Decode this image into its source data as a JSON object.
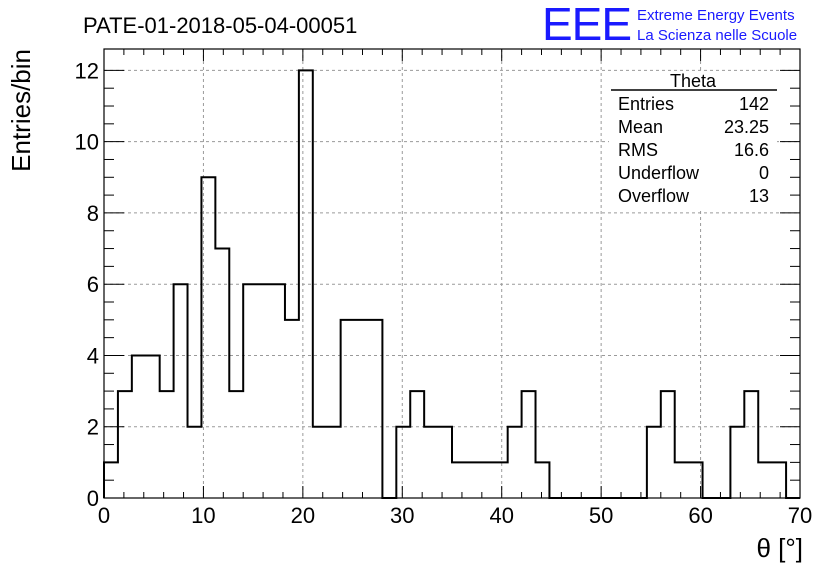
{
  "title": "PATE-01-2018-05-04-00051",
  "logo": {
    "mark": "EEE",
    "line1": "Extreme Energy Events",
    "line2": "La Scienza nelle Scuole",
    "color": "#1a1aff"
  },
  "stats": {
    "name": "Theta",
    "rows": [
      {
        "label": "Entries",
        "value": "142"
      },
      {
        "label": "Mean",
        "value": "23.25"
      },
      {
        "label": "RMS",
        "value": "16.6"
      },
      {
        "label": "Underflow",
        "value": "0"
      },
      {
        "label": "Overflow",
        "value": "13"
      }
    ]
  },
  "chart_data": {
    "type": "bar",
    "histogram": true,
    "xlabel": "θ [°]",
    "ylabel": "Entries/bin",
    "xlim": [
      0,
      70
    ],
    "ylim": [
      0,
      12.6
    ],
    "xticks": [
      0,
      10,
      20,
      30,
      40,
      50,
      60,
      70
    ],
    "yticks": [
      0,
      2,
      4,
      6,
      8,
      10,
      12
    ],
    "grid": true,
    "bin_edges": [
      0,
      1.4,
      2.8,
      4.2,
      5.6,
      7,
      8.4,
      9.8,
      11.2,
      12.6,
      14,
      15.4,
      16.8,
      18.2,
      19.6,
      21,
      22.4,
      23.8,
      25.2,
      26.6,
      28,
      29.4,
      30.8,
      32.2,
      33.6,
      35,
      36.4,
      37.8,
      39.2,
      40.6,
      42,
      43.4,
      44.8,
      46.2,
      47.6,
      49,
      50.4,
      51.8,
      53.2,
      54.6,
      56,
      57.4,
      58.8,
      60.2,
      61.6,
      63,
      64.4,
      65.8,
      67.2,
      68.6,
      70
    ],
    "values": [
      1,
      3,
      4,
      4,
      3,
      6,
      2,
      9,
      7,
      3,
      6,
      6,
      6,
      5,
      12,
      2,
      2,
      5,
      5,
      5,
      0,
      2,
      3,
      2,
      2,
      1,
      1,
      1,
      1,
      2,
      3,
      1,
      0,
      0,
      0,
      0,
      0,
      0,
      0,
      2,
      3,
      1,
      1,
      0,
      0,
      2,
      3,
      1,
      1,
      0
    ]
  }
}
